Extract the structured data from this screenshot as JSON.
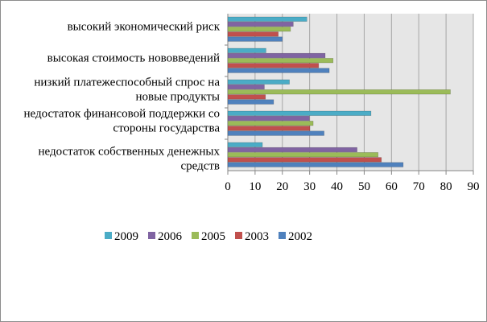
{
  "chart_data": {
    "type": "bar",
    "orientation": "horizontal",
    "title": "",
    "xlabel": "",
    "ylabel": "",
    "categories": [
      [
        "высокий экономический риск"
      ],
      [
        "высокая стоимость нововведений"
      ],
      [
        "низкий платежеспособный спрос на",
        "новые продукты"
      ],
      [
        "недостаток финансовой поддержки со",
        "стороны государства"
      ],
      [
        "недостаток собственных денежных",
        "средств"
      ]
    ],
    "series": [
      {
        "name": "2009",
        "color": "#4bacc6",
        "values": [
          29,
          14,
          22.6,
          52.5,
          12.7
        ]
      },
      {
        "name": "2006",
        "color": "#8064a2",
        "values": [
          24,
          35.7,
          13.4,
          29.9,
          47.4
        ]
      },
      {
        "name": "2005",
        "color": "#9bbb59",
        "values": [
          23,
          38.6,
          81.6,
          31.3,
          55.1
        ]
      },
      {
        "name": "2003",
        "color": "#c0504d",
        "values": [
          18.5,
          33.3,
          13.8,
          30.1,
          56.3
        ]
      },
      {
        "name": "2002",
        "color": "#4f81bd",
        "values": [
          20,
          37.2,
          16.8,
          35.3,
          64.3
        ]
      }
    ],
    "xlim": [
      0,
      90
    ],
    "xticks": [
      "0",
      "10",
      "20",
      "30",
      "40",
      "50",
      "60",
      "70",
      "80",
      "90"
    ],
    "grid": true,
    "legend": "bottom"
  }
}
